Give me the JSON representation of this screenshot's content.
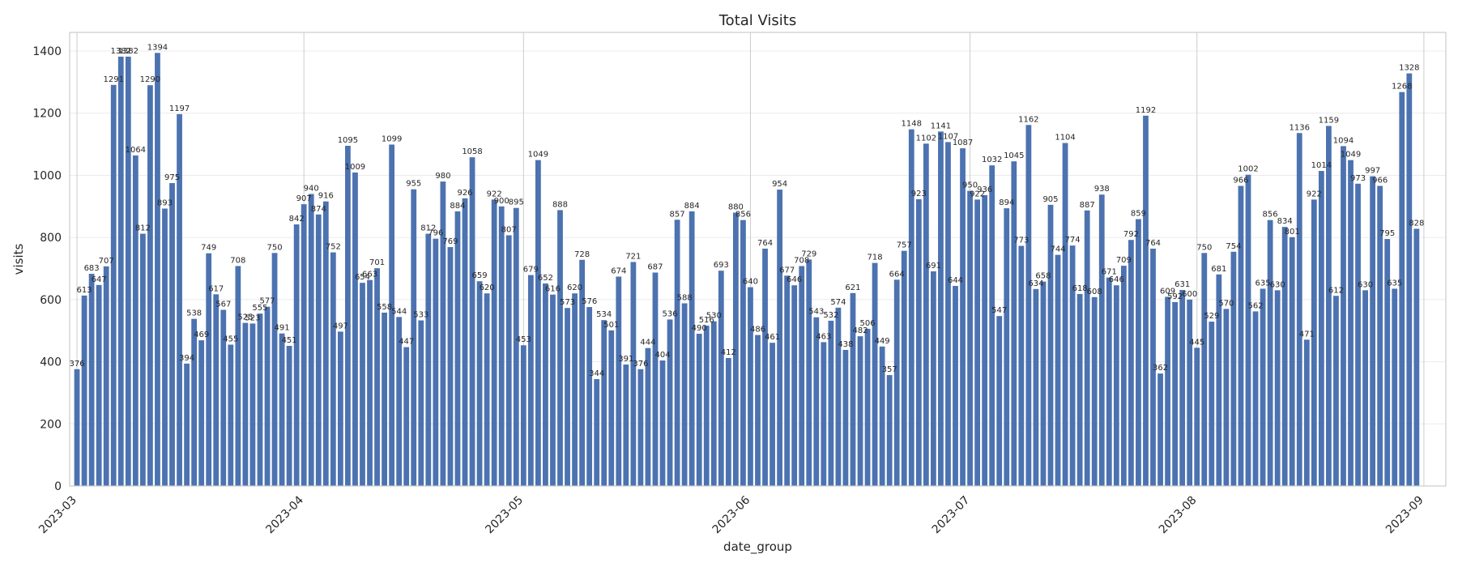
{
  "chart_data": {
    "type": "bar",
    "title": "Total Visits",
    "xlabel": "date_group",
    "ylabel": "visits",
    "ylim": [
      0,
      1460
    ],
    "yticks": [
      0,
      200,
      400,
      600,
      800,
      1000,
      1200,
      1400
    ],
    "xlim": [
      "2023-02-28",
      "2023-09-04"
    ],
    "xticks": [
      "2023-03",
      "2023-04",
      "2023-05",
      "2023-06",
      "2023-07",
      "2023-08",
      "2023-09"
    ],
    "xtick_dates": [
      "2023-03-01",
      "2023-04-01",
      "2023-05-01",
      "2023-06-01",
      "2023-07-01",
      "2023-08-01",
      "2023-09-01"
    ],
    "grid": true,
    "bar_color": "#4c72b0",
    "series": [
      {
        "x_start": "2023-03-01",
        "x_step_days": 1,
        "values": [
          376,
          613,
          683,
          647,
          707,
          1291,
          1382,
          1382,
          1064,
          812,
          1290,
          1394,
          893,
          975,
          1197,
          394,
          538,
          469,
          749,
          617,
          567,
          455,
          708,
          525,
          523,
          555,
          577,
          750,
          491,
          451,
          842,
          907,
          940,
          874,
          916,
          752,
          497,
          1095,
          1009,
          654,
          663,
          701,
          558,
          1099,
          544,
          447,
          955,
          533,
          812,
          796,
          980,
          769,
          884,
          926,
          1058,
          659,
          620,
          922,
          900,
          807,
          895,
          453,
          679,
          1049,
          652,
          616,
          888,
          573,
          620,
          728,
          576,
          344,
          534,
          501,
          674,
          391,
          721,
          376,
          444,
          687,
          404,
          536,
          857,
          588,
          884,
          490,
          516,
          530,
          693,
          412,
          880,
          856,
          640,
          486,
          764,
          461,
          954,
          677,
          646,
          708,
          729,
          543,
          463,
          532,
          574,
          438,
          621,
          482,
          506,
          718,
          449,
          357,
          664,
          757,
          1148,
          923,
          1102,
          691,
          1141,
          1107,
          644,
          1087,
          950,
          922,
          936,
          1032,
          547,
          894,
          1045,
          773,
          1162,
          634,
          658,
          905,
          744,
          1104,
          774,
          618,
          887,
          608,
          938,
          671,
          646,
          709,
          792,
          859,
          1192,
          764,
          362,
          609,
          592,
          631,
          600,
          445,
          750,
          529,
          681,
          570,
          754,
          966,
          1002,
          562,
          635,
          856,
          630,
          834,
          801,
          1136,
          471,
          922,
          1014,
          1159,
          612,
          1094,
          1049,
          973,
          630,
          997,
          966,
          795,
          635,
          1268,
          1328,
          828
        ]
      }
    ]
  }
}
